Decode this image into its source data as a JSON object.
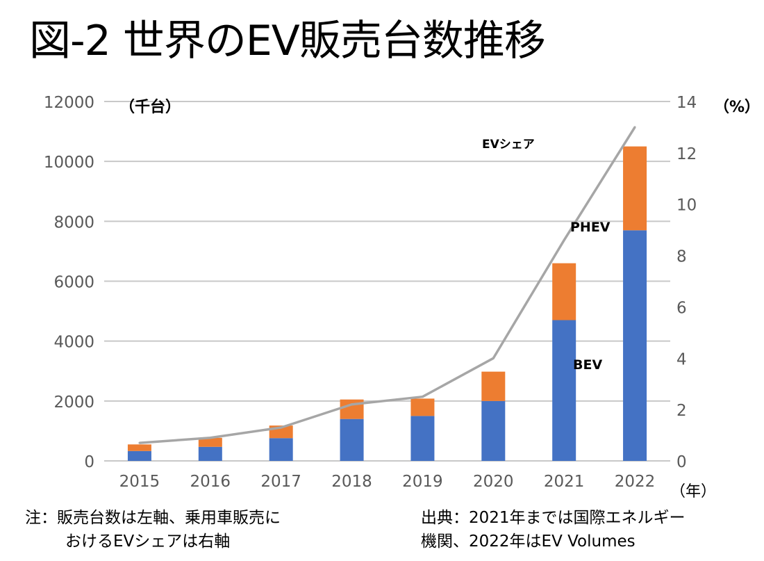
{
  "title": "図-2 世界のEV販売台数推移",
  "chart_data": {
    "type": "bar",
    "stacked": true,
    "categories": [
      "2015",
      "2016",
      "2017",
      "2018",
      "2019",
      "2020",
      "2021",
      "2022"
    ],
    "series": [
      {
        "name": "BEV",
        "axis": "left",
        "color": "#4472c4",
        "values": [
          330,
          470,
          760,
          1400,
          1500,
          2000,
          4700,
          7700
        ]
      },
      {
        "name": "PHEV",
        "axis": "left",
        "color": "#ed7d31",
        "values": [
          220,
          300,
          420,
          650,
          580,
          980,
          1900,
          2800
        ]
      },
      {
        "name": "EVシェア",
        "type": "line",
        "axis": "right",
        "color": "#a6a6a6",
        "values": [
          0.7,
          0.9,
          1.3,
          2.2,
          2.5,
          4.0,
          8.6,
          13.0
        ]
      }
    ],
    "left_axis": {
      "label": "（千台）",
      "ticks": [
        "0",
        "2000",
        "4000",
        "6000",
        "8000",
        "10000",
        "12000"
      ],
      "range": [
        0,
        12000
      ]
    },
    "right_axis": {
      "label": "（%）",
      "ticks": [
        "0",
        "2",
        "4",
        "6",
        "8",
        "10",
        "12",
        "14"
      ],
      "range": [
        0,
        14
      ]
    },
    "x_unit": "（年）",
    "annotations": {
      "ev_share": "EVシェア",
      "phev": "PHEV",
      "bev": "BEV"
    },
    "grid": true
  },
  "note": {
    "line1": "注：販売台数は左軸、乗用車販売に",
    "line2": "おけるEVシェアは右軸"
  },
  "source": {
    "line1": "出典：2021年までは国際エネルギー",
    "line2": "機関、2022年はEV Volumes"
  }
}
